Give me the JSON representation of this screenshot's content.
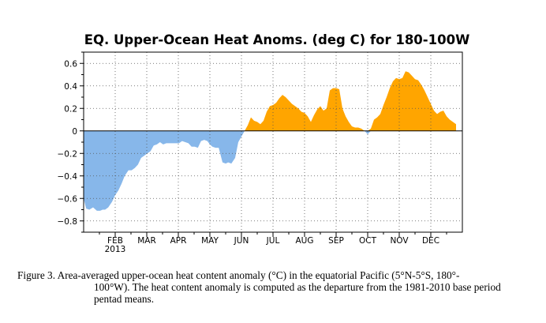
{
  "chart_data": {
    "type": "area",
    "title": "EQ. Upper-Ocean Heat Anoms. (deg C) for 180-100W",
    "ylim": [
      -0.9,
      0.7
    ],
    "yticks": [
      0.6,
      0.4,
      0.2,
      0,
      -0.2,
      -0.4,
      -0.6,
      -0.8
    ],
    "ytick_labels": [
      "0.6",
      "0.4",
      "0.2",
      "0",
      "−0.2",
      "−0.4",
      "−0.6",
      "−0.8"
    ],
    "xlim": [
      0,
      12
    ],
    "xticks": [
      {
        "value": 1,
        "label": "FEB",
        "sublabel": "2013"
      },
      {
        "value": 2,
        "label": "MAR"
      },
      {
        "value": 3,
        "label": "APR"
      },
      {
        "value": 4,
        "label": "MAY"
      },
      {
        "value": 5,
        "label": "JUN"
      },
      {
        "value": 6,
        "label": "JUL"
      },
      {
        "value": 7,
        "label": "AUG"
      },
      {
        "value": 8,
        "label": "SEP"
      },
      {
        "value": 9,
        "label": "OCT"
      },
      {
        "value": 10,
        "label": "NOV"
      },
      {
        "value": 11,
        "label": "DEC"
      }
    ],
    "grid": true,
    "positive_color": "#ffa500",
    "negative_color": "#87b7ea",
    "x": [
      0.0,
      0.08,
      0.18,
      0.3,
      0.42,
      0.52,
      0.6,
      0.68,
      0.78,
      0.9,
      1.0,
      1.1,
      1.2,
      1.3,
      1.42,
      1.52,
      1.62,
      1.72,
      1.82,
      1.92,
      2.02,
      2.12,
      2.22,
      2.32,
      2.42,
      2.52,
      2.62,
      2.72,
      2.82,
      2.92,
      3.02,
      3.12,
      3.22,
      3.32,
      3.42,
      3.52,
      3.62,
      3.72,
      3.82,
      3.92,
      4.0,
      4.08,
      4.18,
      4.28,
      4.4,
      4.5,
      4.58,
      4.68,
      4.8,
      4.9,
      5.0,
      5.1,
      5.2,
      5.3,
      5.4,
      5.5,
      5.6,
      5.7,
      5.8,
      5.9,
      6.0,
      6.1,
      6.2,
      6.3,
      6.4,
      6.5,
      6.6,
      6.7,
      6.8,
      6.9,
      7.0,
      7.1,
      7.2,
      7.3,
      7.4,
      7.5,
      7.6,
      7.7,
      7.8,
      7.9,
      8.0,
      8.1,
      8.2,
      8.3,
      8.4,
      8.5,
      8.6,
      8.7,
      8.8,
      8.9,
      9.0,
      9.1,
      9.2,
      9.3,
      9.4,
      9.5,
      9.6,
      9.7,
      9.8,
      9.9,
      10.0,
      10.1,
      10.2,
      10.3,
      10.4,
      10.5,
      10.6,
      10.7,
      10.8,
      10.9,
      11.0,
      11.1,
      11.2,
      11.3,
      11.4,
      11.5,
      11.6,
      11.7,
      11.8
    ],
    "y": [
      -0.6,
      -0.69,
      -0.7,
      -0.68,
      -0.71,
      -0.71,
      -0.7,
      -0.7,
      -0.68,
      -0.63,
      -0.57,
      -0.53,
      -0.47,
      -0.4,
      -0.35,
      -0.35,
      -0.33,
      -0.3,
      -0.24,
      -0.22,
      -0.2,
      -0.18,
      -0.13,
      -0.12,
      -0.1,
      -0.12,
      -0.11,
      -0.11,
      -0.11,
      -0.11,
      -0.11,
      -0.09,
      -0.1,
      -0.11,
      -0.14,
      -0.14,
      -0.15,
      -0.09,
      -0.08,
      -0.09,
      -0.12,
      -0.14,
      -0.15,
      -0.15,
      -0.28,
      -0.29,
      -0.28,
      -0.29,
      -0.24,
      -0.1,
      -0.05,
      0.0,
      0.05,
      0.12,
      0.09,
      0.08,
      0.06,
      0.09,
      0.17,
      0.22,
      0.23,
      0.25,
      0.29,
      0.32,
      0.3,
      0.27,
      0.24,
      0.22,
      0.2,
      0.17,
      0.16,
      0.13,
      0.08,
      0.14,
      0.19,
      0.22,
      0.18,
      0.2,
      0.36,
      0.38,
      0.38,
      0.37,
      0.2,
      0.13,
      0.08,
      0.04,
      0.03,
      0.03,
      0.02,
      0.0,
      -0.03,
      0.02,
      0.1,
      0.12,
      0.15,
      0.23,
      0.3,
      0.38,
      0.44,
      0.47,
      0.46,
      0.47,
      0.53,
      0.52,
      0.49,
      0.46,
      0.45,
      0.41,
      0.36,
      0.3,
      0.24,
      0.18,
      0.15,
      0.17,
      0.18,
      0.13,
      0.1,
      0.08,
      0.06
    ]
  },
  "caption": {
    "line1": "Figure 3. Area-averaged upper-ocean heat content anomaly (°C) in the equatorial Pacific (5°N-5°S, 180°-",
    "line2": "100°W). The heat content anomaly is computed as the departure from the 1981-2010 base period",
    "line3": "pentad means."
  }
}
